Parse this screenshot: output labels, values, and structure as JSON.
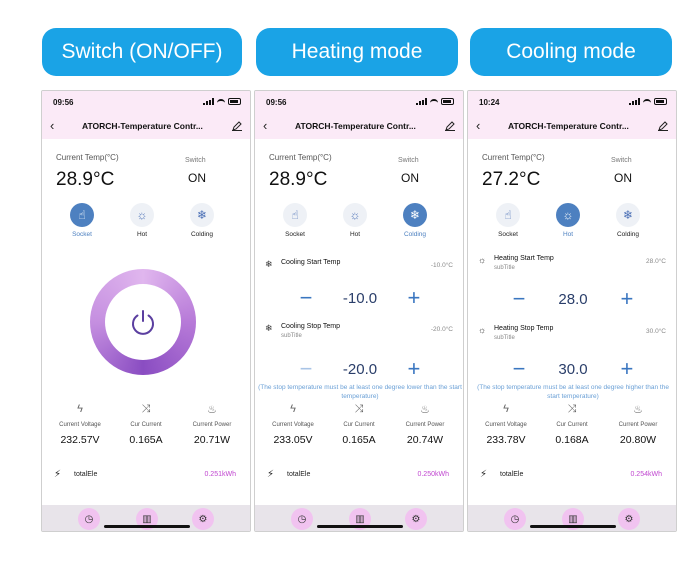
{
  "headers": [
    "Switch (ON/OFF)",
    "Heating mode",
    "Cooling mode"
  ],
  "accent_color": "#1aa3e6",
  "phones": [
    {
      "time": "09:56",
      "title": "ATORCH-Temperature Contr...",
      "current_temp_label": "Current Temp(°C)",
      "current_temp": "28.9°C",
      "switch_label": "Switch",
      "switch_value": "ON",
      "modes": [
        {
          "label": "Socket",
          "icon": "hand-icon",
          "active": true
        },
        {
          "label": "Hot",
          "icon": "sun-icon",
          "active": false
        },
        {
          "label": "Colding",
          "icon": "snowflake-icon",
          "active": false
        }
      ],
      "stats": [
        {
          "label": "Current Voltage",
          "value": "232.57V",
          "icon": "bolt-icon"
        },
        {
          "label": "Cur Current",
          "value": "0.165A",
          "icon": "shuffle-icon"
        },
        {
          "label": "Current Power",
          "value": "20.71W",
          "icon": "flame-icon"
        }
      ],
      "total_label": "totalEle",
      "total_value": "0.251kWh"
    },
    {
      "time": "09:56",
      "title": "ATORCH-Temperature Contr...",
      "current_temp_label": "Current Temp(°C)",
      "current_temp": "28.9°C",
      "switch_label": "Switch",
      "switch_value": "ON",
      "modes": [
        {
          "label": "Socket",
          "icon": "hand-icon",
          "active": false
        },
        {
          "label": "Hot",
          "icon": "sun-icon",
          "active": false
        },
        {
          "label": "Colding",
          "icon": "snowflake-icon",
          "active": true
        }
      ],
      "start": {
        "label": "Cooling Start Temp",
        "subtitle": "",
        "value": "-10.0°C",
        "stepper": "-10.0"
      },
      "stop": {
        "label": "Cooling Stop Temp",
        "subtitle": "subTitle",
        "value": "-20.0°C",
        "stepper": "-20.0"
      },
      "note": "(The stop temperature must be at least one degree lower than the start temperature)",
      "stats": [
        {
          "label": "Current Voltage",
          "value": "233.05V",
          "icon": "bolt-icon"
        },
        {
          "label": "Cur Current",
          "value": "0.165A",
          "icon": "shuffle-icon"
        },
        {
          "label": "Current Power",
          "value": "20.74W",
          "icon": "flame-icon"
        }
      ],
      "total_label": "totalEle",
      "total_value": "0.250kWh"
    },
    {
      "time": "10:24",
      "title": "ATORCH-Temperature Contr...",
      "current_temp_label": "Current Temp(°C)",
      "current_temp": "27.2°C",
      "switch_label": "Switch",
      "switch_value": "ON",
      "modes": [
        {
          "label": "Socket",
          "icon": "hand-icon",
          "active": false
        },
        {
          "label": "Hot",
          "icon": "sun-icon",
          "active": true
        },
        {
          "label": "Colding",
          "icon": "snowflake-icon",
          "active": false
        }
      ],
      "start": {
        "label": "Heating Start Temp",
        "subtitle": "subTitle",
        "value": "28.0°C",
        "stepper": "28.0"
      },
      "stop": {
        "label": "Heating Stop Temp",
        "subtitle": "subTitle",
        "value": "30.0°C",
        "stepper": "30.0"
      },
      "note": "(The stop temperature must be at least one degree higher than the start temperature)",
      "stats": [
        {
          "label": "Current Voltage",
          "value": "233.78V",
          "icon": "bolt-icon"
        },
        {
          "label": "Cur Current",
          "value": "0.168A",
          "icon": "shuffle-icon"
        },
        {
          "label": "Current Power",
          "value": "20.80W",
          "icon": "flame-icon"
        }
      ],
      "total_label": "totalEle",
      "total_value": "0.254kWh"
    }
  ]
}
